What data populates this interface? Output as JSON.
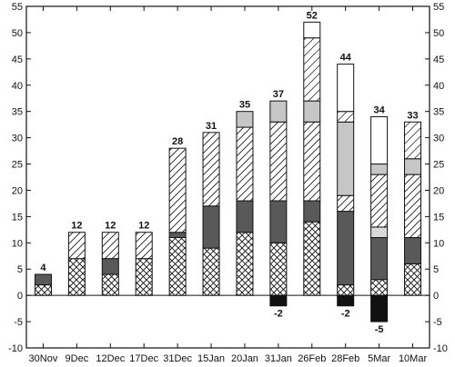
{
  "chart_data": {
    "type": "bar",
    "stacked": true,
    "title": "",
    "xlabel": "",
    "ylabel": "",
    "ylim": [
      -10,
      55
    ],
    "yticks": [
      -10,
      -5,
      0,
      5,
      10,
      15,
      20,
      25,
      30,
      35,
      40,
      45,
      50,
      55
    ],
    "y_axis_both_sides": true,
    "grid": false,
    "categories": [
      "30Nov",
      "9Dec",
      "12Dec",
      "17Dec",
      "31Dec",
      "15Jan",
      "20Jan",
      "31Jan",
      "26Feb",
      "28Feb",
      "5Mar",
      "10Mar"
    ],
    "totals": [
      "4",
      "12",
      "12",
      "12",
      "28",
      "31",
      "35",
      "37",
      "52",
      "44",
      "34",
      "33"
    ],
    "negative_labels": [
      "",
      "",
      "",
      "",
      "",
      "",
      "",
      "-2",
      "",
      "-2",
      "-5",
      ""
    ],
    "series": [
      {
        "pattern": "crosshatch",
        "values": [
          2,
          7,
          4,
          7,
          11,
          9,
          12,
          10,
          14,
          2,
          3,
          6
        ]
      },
      {
        "pattern": "dark-gray",
        "values": [
          2,
          0,
          3,
          0,
          1,
          8,
          6,
          8,
          4,
          14,
          8,
          5
        ]
      },
      {
        "pattern": "light-dotted",
        "values": [
          0,
          0,
          0,
          0,
          0,
          0,
          0,
          0,
          0,
          0,
          2,
          0
        ]
      },
      {
        "pattern": "diagonal-hatch",
        "values": [
          0,
          5,
          5,
          5,
          16,
          14,
          14,
          15,
          15,
          3,
          10,
          12
        ]
      },
      {
        "pattern": "light-gray",
        "values": [
          0,
          0,
          0,
          0,
          0,
          0,
          3,
          4,
          4,
          14,
          2,
          3
        ]
      },
      {
        "pattern": "diagonal-hatch-top",
        "values": [
          0,
          0,
          0,
          0,
          0,
          0,
          0,
          0,
          12,
          2,
          0,
          7
        ]
      },
      {
        "pattern": "white",
        "values": [
          0,
          0,
          0,
          0,
          0,
          0,
          0,
          0,
          3,
          9,
          9,
          0
        ]
      },
      {
        "pattern": "black-negative",
        "values": [
          0,
          0,
          0,
          0,
          0,
          0,
          0,
          -2,
          0,
          -2,
          -5,
          0
        ]
      }
    ]
  }
}
